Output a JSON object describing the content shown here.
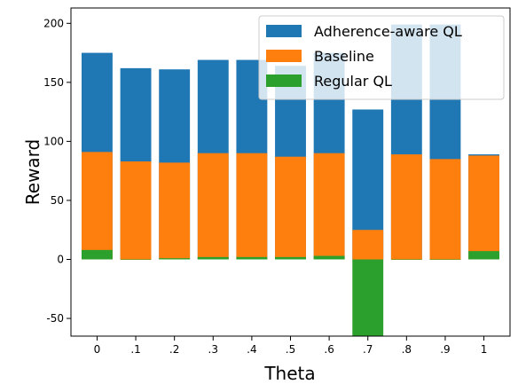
{
  "chart_data": {
    "type": "bar",
    "title": "",
    "xlabel": "Theta",
    "ylabel": "Reward",
    "categories": [
      "0",
      ".1",
      ".2",
      ".3",
      ".4",
      ".5",
      ".6",
      ".7",
      ".8",
      ".9",
      "1"
    ],
    "ylim": [
      -65,
      213
    ],
    "yticks": [
      -50,
      0,
      50,
      100,
      150,
      200
    ],
    "grid": false,
    "legend_position": "top-right",
    "series": [
      {
        "name": "Adherence-aware QL",
        "color": "#1f77b4",
        "values": [
          175,
          162,
          161,
          169,
          169,
          164,
          175,
          127,
          199,
          199,
          89
        ]
      },
      {
        "name": "Baseline",
        "color": "#ff7f0e",
        "values": [
          91,
          83,
          82,
          90,
          90,
          87,
          90,
          25,
          89,
          85,
          88
        ]
      },
      {
        "name": "Regular QL",
        "color": "#2ca02c",
        "values": [
          8,
          0,
          1,
          2,
          2,
          2,
          3,
          -65,
          0,
          0,
          7
        ]
      }
    ]
  }
}
